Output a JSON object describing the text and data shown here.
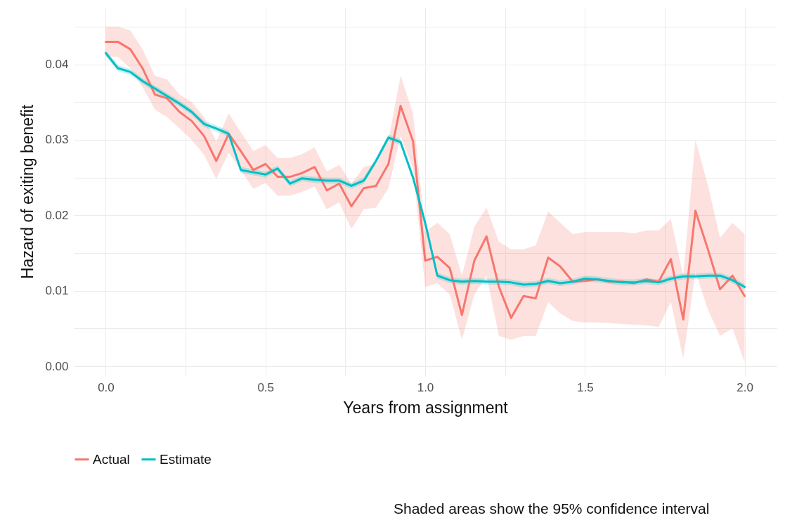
{
  "chart_data": {
    "type": "line",
    "xlabel": "Years from assignment",
    "ylabel": "Hazard of exiting benefit",
    "x": [
      0,
      0.038,
      0.077,
      0.115,
      0.154,
      0.192,
      0.231,
      0.269,
      0.308,
      0.346,
      0.385,
      0.423,
      0.462,
      0.5,
      0.538,
      0.577,
      0.615,
      0.654,
      0.692,
      0.731,
      0.769,
      0.808,
      0.846,
      0.885,
      0.923,
      0.962,
      1,
      1.038,
      1.077,
      1.115,
      1.154,
      1.192,
      1.231,
      1.269,
      1.308,
      1.346,
      1.385,
      1.423,
      1.462,
      1.5,
      1.538,
      1.577,
      1.615,
      1.654,
      1.692,
      1.731,
      1.769,
      1.808,
      1.846,
      1.885,
      1.923,
      1.962,
      2
    ],
    "series": [
      {
        "name": "Actual",
        "color": "#f8766d",
        "values": [
          0.043,
          0.043,
          0.042,
          0.0395,
          0.036,
          0.0355,
          0.0337,
          0.0325,
          0.0305,
          0.0272,
          0.0308,
          0.0285,
          0.026,
          0.0268,
          0.0251,
          0.0251,
          0.0256,
          0.0264,
          0.0233,
          0.0242,
          0.0212,
          0.0236,
          0.0239,
          0.0268,
          0.0345,
          0.0298,
          0.014,
          0.0145,
          0.013,
          0.0068,
          0.014,
          0.0172,
          0.0105,
          0.0064,
          0.0093,
          0.009,
          0.0144,
          0.0132,
          0.0112,
          0.0113,
          0.0115,
          0.0112,
          0.0112,
          0.011,
          0.0115,
          0.0112,
          0.0142,
          0.0062,
          0.0206,
          0.0155,
          0.0102,
          0.012,
          0.0093
        ],
        "lower": [
          0.041,
          0.041,
          0.0395,
          0.037,
          0.034,
          0.033,
          0.0315,
          0.03,
          0.028,
          0.0248,
          0.0283,
          0.026,
          0.0235,
          0.0243,
          0.0226,
          0.0226,
          0.0231,
          0.0238,
          0.0208,
          0.0217,
          0.0182,
          0.0208,
          0.021,
          0.0236,
          0.0305,
          0.0262,
          0.0105,
          0.011,
          0.0095,
          0.0035,
          0.0095,
          0.012,
          0.004,
          0.0035,
          0.004,
          0.004,
          0.0085,
          0.007,
          0.006,
          0.0058,
          0.0058,
          0.0057,
          0.0056,
          0.0055,
          0.0054,
          0.0052,
          0.0085,
          0.001,
          0.0125,
          0.0075,
          0.004,
          0.005,
          0.0005
        ],
        "upper": [
          0.045,
          0.045,
          0.0445,
          0.042,
          0.0385,
          0.038,
          0.036,
          0.035,
          0.033,
          0.0298,
          0.0335,
          0.031,
          0.0285,
          0.0293,
          0.0276,
          0.0276,
          0.0281,
          0.029,
          0.0258,
          0.0267,
          0.0242,
          0.0264,
          0.0268,
          0.03,
          0.0385,
          0.0335,
          0.0178,
          0.019,
          0.0175,
          0.012,
          0.0185,
          0.021,
          0.0165,
          0.0155,
          0.0155,
          0.016,
          0.0205,
          0.019,
          0.0175,
          0.0178,
          0.0178,
          0.0178,
          0.0178,
          0.0176,
          0.018,
          0.018,
          0.0195,
          0.012,
          0.03,
          0.024,
          0.017,
          0.019,
          0.0175
        ]
      },
      {
        "name": "Estimate",
        "color": "#00bfc4",
        "values": [
          0.0415,
          0.0395,
          0.039,
          0.0378,
          0.0368,
          0.0358,
          0.0348,
          0.0337,
          0.0321,
          0.0315,
          0.0308,
          0.026,
          0.0257,
          0.0254,
          0.0262,
          0.0242,
          0.0249,
          0.0247,
          0.0246,
          0.0246,
          0.0239,
          0.0246,
          0.0272,
          0.0303,
          0.0297,
          0.025,
          0.019,
          0.012,
          0.0114,
          0.0112,
          0.0113,
          0.0112,
          0.0112,
          0.0111,
          0.0108,
          0.0109,
          0.0113,
          0.011,
          0.0112,
          0.0116,
          0.0115,
          0.0113,
          0.0111,
          0.0111,
          0.0113,
          0.0111,
          0.0116,
          0.0119,
          0.0119,
          0.012,
          0.012,
          0.0114,
          0.0105
        ],
        "lower": [
          0.0411,
          0.0391,
          0.0386,
          0.0374,
          0.0364,
          0.0354,
          0.0344,
          0.0333,
          0.0317,
          0.0311,
          0.0304,
          0.0256,
          0.0253,
          0.025,
          0.0258,
          0.0238,
          0.0245,
          0.0243,
          0.0242,
          0.0242,
          0.0235,
          0.0242,
          0.0268,
          0.0299,
          0.0293,
          0.0246,
          0.0186,
          0.0116,
          0.011,
          0.0108,
          0.0109,
          0.0108,
          0.0108,
          0.0107,
          0.0104,
          0.0105,
          0.0109,
          0.0106,
          0.0108,
          0.0112,
          0.0111,
          0.0109,
          0.0107,
          0.0107,
          0.0109,
          0.0107,
          0.0112,
          0.0115,
          0.0115,
          0.0116,
          0.0116,
          0.011,
          0.0101
        ],
        "upper": [
          0.0419,
          0.0399,
          0.0394,
          0.0382,
          0.0372,
          0.0362,
          0.0352,
          0.0341,
          0.0325,
          0.0319,
          0.0312,
          0.0264,
          0.0261,
          0.0258,
          0.0266,
          0.0246,
          0.0253,
          0.0251,
          0.025,
          0.025,
          0.0243,
          0.025,
          0.0276,
          0.0307,
          0.0301,
          0.0254,
          0.0194,
          0.0124,
          0.0118,
          0.0116,
          0.0117,
          0.0116,
          0.0116,
          0.0115,
          0.0112,
          0.0113,
          0.0117,
          0.0114,
          0.0116,
          0.012,
          0.0119,
          0.0117,
          0.0115,
          0.0115,
          0.0117,
          0.0115,
          0.012,
          0.0123,
          0.0123,
          0.0124,
          0.0124,
          0.0118,
          0.0109
        ]
      }
    ],
    "xlim": [
      -0.1,
      2.1
    ],
    "xticks": [
      {
        "value": 0,
        "label": "0.0"
      },
      {
        "value": 0.25,
        "label": null
      },
      0.5,
      {
        "value": 0.75,
        "label": null
      },
      {
        "value": 1,
        "label": "1.0"
      },
      {
        "value": 1.25,
        "label": null
      },
      1.5,
      {
        "value": 1.75,
        "label": null
      },
      {
        "value": 2,
        "label": "2.0"
      }
    ],
    "ylim": [
      -0.0013,
      0.0476
    ],
    "yticks": [
      {
        "value": 0,
        "label": "0.00"
      },
      {
        "value": 0.005,
        "label": null
      },
      {
        "value": 0.01,
        "label": "0.01"
      },
      {
        "value": 0.015,
        "label": null
      },
      {
        "value": 0.02,
        "label": "0.02"
      },
      {
        "value": 0.025,
        "label": null
      },
      {
        "value": 0.03,
        "label": "0.03"
      },
      {
        "value": 0.035,
        "label": null
      },
      {
        "value": 0.04,
        "label": "0.04"
      },
      {
        "value": 0.045,
        "label": null
      }
    ],
    "grid": true,
    "legend": "bottom",
    "line_style": "solid",
    "annotations": [
      "Shaded areas show the 95% confidence interval"
    ]
  }
}
